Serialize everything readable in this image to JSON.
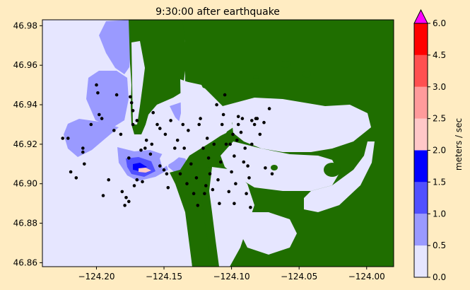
{
  "chart_data": {
    "type": "heatmap",
    "title": "9:30:00 after earthquake",
    "xlim": [
      -124.24,
      -123.98
    ],
    "ylim": [
      46.858,
      46.983
    ],
    "x_ticks": [
      -124.2,
      -124.15,
      -124.1,
      -124.05,
      -124.0
    ],
    "x_tick_labels": [
      "−124.20",
      "−124.15",
      "−124.10",
      "−124.05",
      "−124.00"
    ],
    "y_ticks": [
      46.86,
      46.88,
      46.9,
      46.92,
      46.94,
      46.96,
      46.98
    ],
    "y_tick_labels": [
      "46.86",
      "46.88",
      "46.90",
      "46.92",
      "46.94",
      "46.96",
      "46.98"
    ],
    "grid": false,
    "colorbar": {
      "label": "meters / sec",
      "extend": "max",
      "levels": [
        0.0,
        0.5,
        1.0,
        1.5,
        2.0,
        2.5,
        3.0,
        4.5,
        6.0
      ],
      "level_labels": [
        "0.0",
        "0.5",
        "1.0",
        "1.5",
        "2.0",
        "2.5",
        "3.0",
        "4.5",
        "6.0"
      ],
      "colors": [
        "#e6e6ff",
        "#9a9aff",
        "#5050ff",
        "#0000ff",
        "#ffc8c8",
        "#ff9b9b",
        "#ff5050",
        "#ff0000"
      ],
      "extend_color": "#ff00ff"
    },
    "land_color": "#1f6e00",
    "water_color": "#e6e6ff",
    "gauges": [
      [
        -124.225,
        46.923
      ],
      [
        -124.221,
        46.923
      ],
      [
        -124.219,
        46.906
      ],
      [
        -124.215,
        46.903
      ],
      [
        -124.21,
        46.918
      ],
      [
        -124.21,
        46.916
      ],
      [
        -124.209,
        46.91
      ],
      [
        -124.204,
        46.93
      ],
      [
        -124.2,
        46.95
      ],
      [
        -124.199,
        46.946
      ],
      [
        -124.198,
        46.935
      ],
      [
        -124.196,
        46.933
      ],
      [
        -124.195,
        46.894
      ],
      [
        -124.191,
        46.902
      ],
      [
        -124.187,
        46.927
      ],
      [
        -124.185,
        46.945
      ],
      [
        -124.182,
        46.925
      ],
      [
        -124.181,
        46.896
      ],
      [
        -124.179,
        46.889
      ],
      [
        -124.178,
        46.893
      ],
      [
        -124.176,
        46.891
      ],
      [
        -124.176,
        46.913
      ],
      [
        -124.175,
        46.944
      ],
      [
        -124.174,
        46.941
      ],
      [
        -124.173,
        46.937
      ],
      [
        -124.173,
        46.93
      ],
      [
        -124.172,
        46.899
      ],
      [
        -124.17,
        46.902
      ],
      [
        -124.17,
        46.932
      ],
      [
        -124.167,
        46.917
      ],
      [
        -124.166,
        46.901
      ],
      [
        -124.164,
        46.918
      ],
      [
        -124.163,
        46.922
      ],
      [
        -124.16,
        46.915
      ],
      [
        -124.159,
        46.92
      ],
      [
        -124.158,
        46.936
      ],
      [
        -124.155,
        46.93
      ],
      [
        -124.153,
        46.928
      ],
      [
        -124.153,
        46.909
      ],
      [
        -124.15,
        46.907
      ],
      [
        -124.149,
        46.925
      ],
      [
        -124.148,
        46.905
      ],
      [
        -124.147,
        46.898
      ],
      [
        -124.145,
        46.932
      ],
      [
        -124.142,
        46.918
      ],
      [
        -124.14,
        46.922
      ],
      [
        -124.138,
        46.905
      ],
      [
        -124.136,
        46.93
      ],
      [
        -124.135,
        46.918
      ],
      [
        -124.133,
        46.9
      ],
      [
        -124.132,
        46.927
      ],
      [
        -124.13,
        46.91
      ],
      [
        -124.128,
        46.895
      ],
      [
        -124.126,
        46.903
      ],
      [
        -124.125,
        46.889
      ],
      [
        -124.124,
        46.93
      ],
      [
        -124.123,
        46.933
      ],
      [
        -124.121,
        46.918
      ],
      [
        -124.12,
        46.895
      ],
      [
        -124.119,
        46.899
      ],
      [
        -124.118,
        46.923
      ],
      [
        -124.117,
        46.913
      ],
      [
        -124.116,
        46.905
      ],
      [
        -124.114,
        46.897
      ],
      [
        -124.113,
        46.92
      ],
      [
        -124.111,
        46.94
      ],
      [
        -124.11,
        46.902
      ],
      [
        -124.109,
        46.89
      ],
      [
        -124.108,
        46.911
      ],
      [
        -124.107,
        46.93
      ],
      [
        -124.106,
        46.935
      ],
      [
        -124.105,
        46.945
      ],
      [
        -124.104,
        46.92
      ],
      [
        -124.102,
        46.896
      ],
      [
        -124.101,
        46.92
      ],
      [
        -124.1,
        46.906
      ],
      [
        -124.099,
        46.925
      ],
      [
        -124.098,
        46.89
      ],
      [
        -124.098,
        46.914
      ],
      [
        -124.097,
        46.9
      ],
      [
        -124.096,
        46.922
      ],
      [
        -124.095,
        46.93
      ],
      [
        -124.095,
        46.934
      ],
      [
        -124.093,
        46.926
      ],
      [
        -124.092,
        46.933
      ],
      [
        -124.091,
        46.911
      ],
      [
        -124.09,
        46.918
      ],
      [
        -124.089,
        46.895
      ],
      [
        -124.088,
        46.909
      ],
      [
        -124.087,
        46.903
      ],
      [
        -124.086,
        46.888
      ],
      [
        -124.085,
        46.92
      ],
      [
        -124.085,
        46.932
      ],
      [
        -124.083,
        46.93
      ],
      [
        -124.082,
        46.933
      ],
      [
        -124.081,
        46.933
      ],
      [
        -124.079,
        46.925
      ],
      [
        -124.076,
        46.931
      ],
      [
        -124.075,
        46.908
      ],
      [
        -124.072,
        46.938
      ],
      [
        -124.07,
        46.905
      ]
    ]
  }
}
